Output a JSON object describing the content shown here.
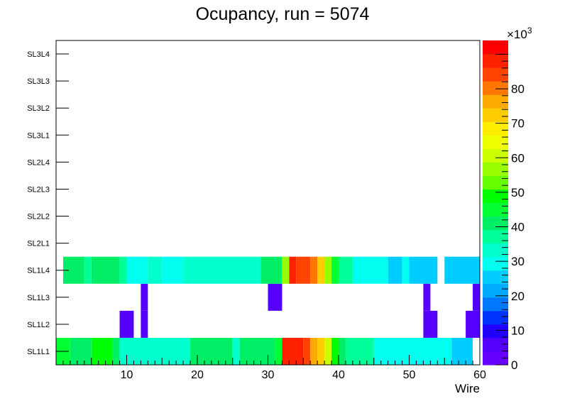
{
  "chart_data": {
    "type": "heatmap",
    "title": "Ocupancy, run = 5074",
    "xlabel": "Wire",
    "ylabel": "",
    "xlim": [
      0,
      60
    ],
    "x_ticks": [
      "10",
      "20",
      "30",
      "40",
      "50",
      "60"
    ],
    "y_categories": [
      "SL1L1",
      "SL1L2",
      "SL1L3",
      "SL1L4",
      "SL2L1",
      "SL2L2",
      "SL2L3",
      "SL2L4",
      "SL3L1",
      "SL3L2",
      "SL3L3",
      "SL3L4"
    ],
    "z_multiplier": "×10",
    "z_multiplier_exp": "3",
    "z_range": [
      0,
      94
    ],
    "z_ticks": [
      "0",
      "10",
      "20",
      "30",
      "40",
      "50",
      "60",
      "70",
      "80"
    ],
    "z_units": "thousands",
    "colormap": [
      "#6600ff",
      "#5500ff",
      "#2200ff",
      "#0033ff",
      "#0077ff",
      "#00aaff",
      "#00ccff",
      "#00ffee",
      "#00ffcc",
      "#00ff99",
      "#00ee66",
      "#00ff33",
      "#00ff00",
      "#66ff00",
      "#99ff00",
      "#ccff00",
      "#eeff00",
      "#ffee00",
      "#ffcc00",
      "#ffaa00",
      "#ff7700",
      "#ff4400",
      "#ff2200",
      "#ff0000"
    ],
    "rows": [
      {
        "layer": "SL1L1",
        "cells": [
          {
            "w0": 0,
            "w1": 2,
            "v": 44
          },
          {
            "w0": 2,
            "w1": 5,
            "v": 42
          },
          {
            "w0": 5,
            "w1": 8,
            "v": 47
          },
          {
            "w0": 8,
            "w1": 9,
            "v": 42
          },
          {
            "w0": 9,
            "w1": 19,
            "v": 34
          },
          {
            "w0": 19,
            "w1": 25,
            "v": 40
          },
          {
            "w0": 25,
            "w1": 26,
            "v": 34
          },
          {
            "w0": 26,
            "w1": 31,
            "v": 40
          },
          {
            "w0": 31,
            "w1": 32,
            "v": 44
          },
          {
            "w0": 32,
            "w1": 35,
            "v": 90
          },
          {
            "w0": 35,
            "w1": 36,
            "v": 83
          },
          {
            "w0": 36,
            "w1": 37,
            "v": 77
          },
          {
            "w0": 37,
            "w1": 38,
            "v": 71
          },
          {
            "w0": 38,
            "w1": 39,
            "v": 60
          },
          {
            "w0": 39,
            "w1": 40,
            "v": 50
          },
          {
            "w0": 40,
            "w1": 41,
            "v": 40
          },
          {
            "w0": 41,
            "w1": 45,
            "v": 36
          },
          {
            "w0": 45,
            "w1": 56,
            "v": 30
          },
          {
            "w0": 56,
            "w1": 59,
            "v": 25
          }
        ]
      },
      {
        "layer": "SL1L2",
        "cells": [
          {
            "w0": 9,
            "w1": 11,
            "v": 5
          },
          {
            "w0": 12,
            "w1": 13,
            "v": 5
          },
          {
            "w0": 52,
            "w1": 54,
            "v": 5
          },
          {
            "w0": 58,
            "w1": 60,
            "v": 5
          }
        ]
      },
      {
        "layer": "SL1L3",
        "cells": [
          {
            "w0": 12,
            "w1": 13,
            "v": 5
          },
          {
            "w0": 30,
            "w1": 32,
            "v": 5
          },
          {
            "w0": 52,
            "w1": 53,
            "v": 5
          },
          {
            "w0": 59,
            "w1": 60,
            "v": 5
          }
        ]
      },
      {
        "layer": "SL1L4",
        "cells": [
          {
            "w0": 1,
            "w1": 4,
            "v": 40
          },
          {
            "w0": 4,
            "w1": 5,
            "v": 36
          },
          {
            "w0": 5,
            "w1": 9,
            "v": 40
          },
          {
            "w0": 9,
            "w1": 10,
            "v": 36
          },
          {
            "w0": 10,
            "w1": 13,
            "v": 30
          },
          {
            "w0": 13,
            "w1": 15,
            "v": 34
          },
          {
            "w0": 15,
            "w1": 18,
            "v": 30
          },
          {
            "w0": 18,
            "w1": 29,
            "v": 34
          },
          {
            "w0": 29,
            "w1": 32,
            "v": 40
          },
          {
            "w0": 32,
            "w1": 33,
            "v": 55
          },
          {
            "w0": 33,
            "w1": 34,
            "v": 90
          },
          {
            "w0": 34,
            "w1": 36,
            "v": 86
          },
          {
            "w0": 36,
            "w1": 37,
            "v": 80
          },
          {
            "w0": 37,
            "w1": 38,
            "v": 72
          },
          {
            "w0": 38,
            "w1": 39,
            "v": 58
          },
          {
            "w0": 39,
            "w1": 40,
            "v": 46
          },
          {
            "w0": 40,
            "w1": 42,
            "v": 38
          },
          {
            "w0": 42,
            "w1": 47,
            "v": 30
          },
          {
            "w0": 47,
            "w1": 49,
            "v": 25
          },
          {
            "w0": 49,
            "w1": 50,
            "v": 30
          },
          {
            "w0": 50,
            "w1": 54,
            "v": 25
          },
          {
            "w0": 55,
            "w1": 61,
            "v": 25
          }
        ]
      },
      {
        "layer": "SL2L1",
        "cells": []
      },
      {
        "layer": "SL2L2",
        "cells": []
      },
      {
        "layer": "SL2L3",
        "cells": []
      },
      {
        "layer": "SL2L4",
        "cells": []
      },
      {
        "layer": "SL3L1",
        "cells": []
      },
      {
        "layer": "SL3L2",
        "cells": []
      },
      {
        "layer": "SL3L3",
        "cells": []
      },
      {
        "layer": "SL3L4",
        "cells": []
      }
    ]
  }
}
